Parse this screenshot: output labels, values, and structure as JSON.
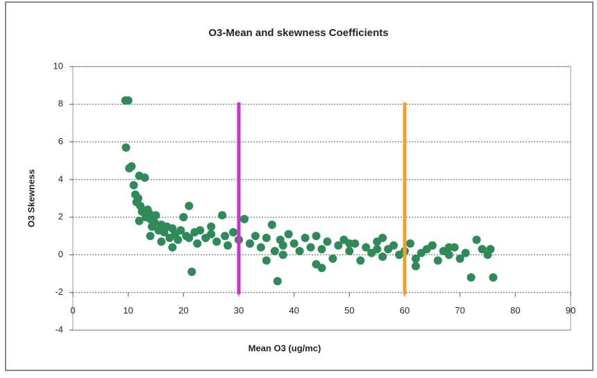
{
  "chart_data": {
    "type": "scatter",
    "title": "O3-Mean and skewness Coefficients",
    "xlabel": "Mean O3 (ug/mc)",
    "ylabel": "O3 Skewness",
    "xlim": [
      0,
      90
    ],
    "ylim": [
      -4,
      10
    ],
    "xticks": [
      0,
      10,
      20,
      30,
      40,
      50,
      60,
      70,
      80,
      90
    ],
    "yticks": [
      -4,
      -2,
      0,
      2,
      4,
      6,
      8,
      10
    ],
    "grid": true,
    "series": [
      {
        "color": "#2e8b57",
        "x": [
          9.5,
          10,
          9.6,
          10.2,
          10.6,
          11,
          11.3,
          11.5,
          12,
          12.2,
          12.5,
          13,
          13.2,
          13.5,
          14,
          14.3,
          14.8,
          15,
          15.5,
          16,
          16.5,
          17,
          17.5,
          18,
          18.5,
          19,
          19.5,
          20,
          20.5,
          21,
          21.5,
          21,
          22,
          22.5,
          23,
          24,
          25,
          26,
          27,
          27.5,
          28,
          29,
          30,
          31,
          32,
          33,
          34,
          35,
          36,
          36.5,
          37,
          37.5,
          38,
          39,
          40,
          41,
          42,
          43,
          44,
          45,
          46,
          47,
          48,
          49,
          50,
          51,
          52,
          53,
          54,
          55,
          56,
          57,
          58,
          59,
          60,
          61,
          62,
          63,
          64,
          65,
          66,
          67,
          68,
          69,
          70,
          71,
          72,
          73,
          74,
          75,
          75.5,
          76,
          12,
          14,
          16,
          18,
          25,
          32,
          38,
          44,
          50,
          56,
          62,
          68,
          35,
          45,
          55,
          65,
          11.8,
          13.8
        ],
        "values": [
          8.2,
          8.2,
          5.7,
          4.6,
          4.7,
          3.7,
          3.2,
          2.8,
          4.2,
          2.6,
          2.3,
          4.1,
          2.0,
          2.4,
          1.9,
          1.5,
          1.7,
          2.1,
          1.3,
          1.6,
          1.2,
          1.5,
          0.9,
          1.4,
          1.1,
          0.8,
          1.3,
          2.0,
          1.0,
          0.9,
          -0.9,
          2.6,
          1.2,
          0.6,
          1.3,
          0.9,
          1.1,
          0.7,
          2.1,
          1.0,
          0.5,
          1.2,
          0.8,
          1.9,
          0.6,
          1.0,
          0.4,
          0.9,
          1.6,
          0.2,
          -1.4,
          0.8,
          0.5,
          1.1,
          0.6,
          0.2,
          0.9,
          0.4,
          1.0,
          0.3,
          0.7,
          -0.2,
          0.5,
          0.8,
          0.2,
          0.6,
          -0.3,
          0.4,
          0.1,
          0.7,
          -0.1,
          0.3,
          0.5,
          0.0,
          0.2,
          0.6,
          -0.2,
          0.1,
          0.3,
          0.5,
          -0.3,
          0.2,
          0.0,
          0.4,
          -0.2,
          0.1,
          -1.2,
          0.8,
          0.3,
          0.0,
          0.3,
          -1.2,
          1.8,
          1.0,
          0.7,
          0.4,
          1.5,
          0.6,
          0.0,
          -0.5,
          0.6,
          0.9,
          -0.6,
          0.4,
          -0.3,
          -0.7,
          0.3,
          0.5,
          3.0,
          2.2
        ]
      }
    ],
    "vertical_lines": [
      {
        "x": 30,
        "ymin": -2.1,
        "ymax": 8.1,
        "color": "#cc33cc"
      },
      {
        "x": 60,
        "ymin": -2.1,
        "ymax": 8.1,
        "color": "#f0a030"
      }
    ]
  }
}
